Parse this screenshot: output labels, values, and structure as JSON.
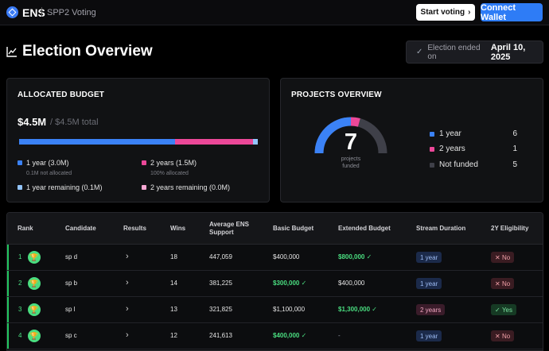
{
  "header": {
    "brand": "ENS",
    "subtitle": "SPP2 Voting",
    "start_voting": "Start voting",
    "connect_wallet": "Connect Wallet"
  },
  "title": {
    "text": "Election Overview",
    "ended_label": "Election ended on",
    "ended_date": "April 10, 2025"
  },
  "budget": {
    "title": "ALLOCATED BUDGET",
    "amount": "$4.5M",
    "total": "/ $4.5M total",
    "bar": {
      "one_year_fraction": 0.667,
      "two_year_fraction": 0.333,
      "remaining_fraction": 0.022
    },
    "colors": {
      "one_year": "#3b82f6",
      "two_years": "#ec4899",
      "one_year_remaining": "#93c5fd",
      "two_years_remaining": "#f9a8d4"
    },
    "legend": {
      "one_year": "1 year (3.0M)",
      "one_year_note": "0.1M not allocated",
      "two_years": "2 years (1.5M)",
      "two_years_note": "100% allocated",
      "one_year_remaining": "1 year remaining (0.1M)",
      "two_years_remaining": "2 years remaining (0.0M)"
    }
  },
  "projects": {
    "title": "PROJECTS OVERVIEW",
    "funded_count": "7",
    "caption_line1": "projects",
    "caption_line2": "funded",
    "rows": [
      {
        "label": "1 year",
        "value": "6",
        "color": "#3b82f6"
      },
      {
        "label": "2 years",
        "value": "1",
        "color": "#ec4899"
      },
      {
        "label": "Not funded",
        "value": "5",
        "color": "#3f4049"
      }
    ]
  },
  "table": {
    "headers": {
      "rank": "Rank",
      "candidate": "Candidate",
      "results": "Results",
      "wins": "Wins",
      "support_line1": "Average ENS",
      "support_line2": "Support",
      "basic_budget": "Basic Budget",
      "extended_budget": "Extended Budget",
      "stream_duration": "Stream Duration",
      "eligibility": "2Y Eligibility"
    },
    "rows": [
      {
        "rank": "1",
        "candidate": "sp d",
        "wins": "18",
        "support": "447,059",
        "basic": "$400,000",
        "extended": "$800,000",
        "duration": "1 year",
        "eligibility": "No"
      },
      {
        "rank": "2",
        "candidate": "sp b",
        "wins": "14",
        "support": "381,225",
        "basic": "$300,000",
        "extended": "$400,000",
        "duration": "1 year",
        "eligibility": "No"
      },
      {
        "rank": "3",
        "candidate": "sp l",
        "wins": "13",
        "support": "321,825",
        "basic": "$1,100,000",
        "extended": "$1,300,000",
        "duration": "2 years",
        "eligibility": "Yes"
      },
      {
        "rank": "4",
        "candidate": "sp c",
        "wins": "12",
        "support": "241,613",
        "basic": "$400,000",
        "extended": "-",
        "duration": "1 year",
        "eligibility": "No"
      }
    ]
  }
}
